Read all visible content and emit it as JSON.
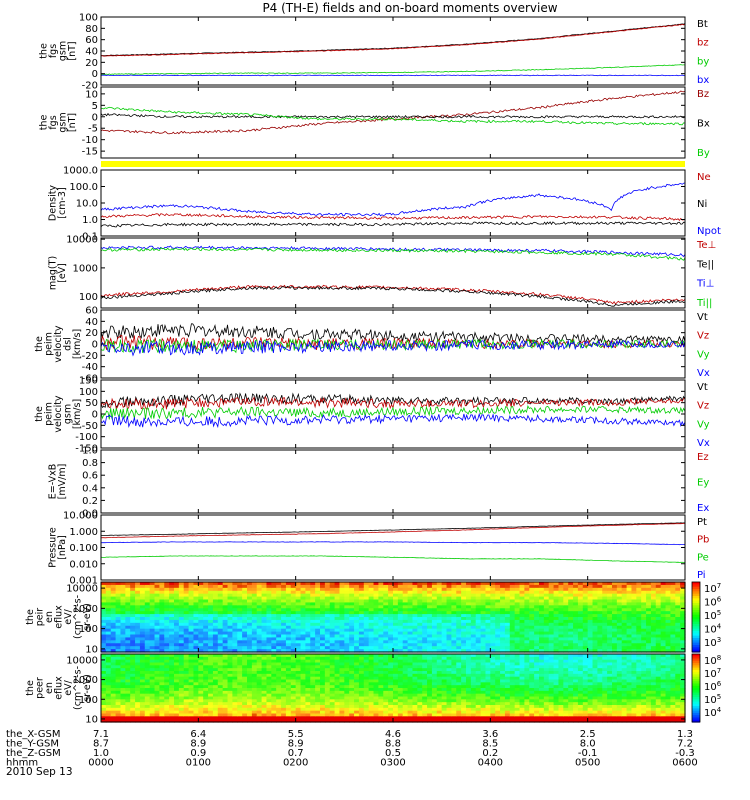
{
  "title": "P4 (TH-E) fields and on-board moments overview",
  "date": "2010 Sep 13",
  "chart_data": [
    {
      "type": "line",
      "panel": "fgs_gsm_nT",
      "ylabel": [
        "the",
        "fgs",
        "gsm",
        "[nT]"
      ],
      "yticks": [
        "100",
        "80",
        "60",
        "40",
        "20",
        "0",
        "-20"
      ],
      "ylim": [
        -20,
        100
      ],
      "series": [
        {
          "name": "Bt",
          "color": "#000000",
          "values": [
            32,
            35,
            38,
            41,
            45,
            52,
            62,
            75,
            88
          ]
        },
        {
          "name": "bz",
          "color": "#c00000",
          "values": [
            31,
            34,
            37,
            40,
            44,
            51,
            61,
            74,
            87
          ]
        },
        {
          "name": "by",
          "color": "#00cc00",
          "values": [
            -1,
            0,
            1,
            1,
            2,
            4,
            7,
            11,
            16
          ]
        },
        {
          "name": "bx",
          "color": "#0000ff",
          "values": [
            -3,
            -3,
            -3,
            -3,
            -3,
            -3,
            -3,
            -3,
            -3
          ]
        }
      ]
    },
    {
      "type": "line",
      "panel": "fgs_gsm_nT_zoom",
      "ylabel": [
        "the",
        "fgs",
        "gsm",
        "[nT]"
      ],
      "yticks": [
        "10",
        "5",
        "0",
        "-5",
        "-10",
        "-15"
      ],
      "ylim": [
        -18,
        13
      ],
      "series": [
        {
          "name": "Bz",
          "color": "#990000",
          "values": [
            -6,
            -7,
            -6,
            -3,
            -1,
            1,
            4,
            8,
            11
          ]
        },
        {
          "name": "Bx",
          "color": "#000000",
          "values": [
            1,
            0,
            0,
            0,
            0,
            0,
            0,
            0,
            0
          ]
        },
        {
          "name": "By",
          "color": "#00cc00",
          "values": [
            4,
            2,
            1,
            -1,
            -1,
            -2,
            -2,
            -3,
            -3
          ]
        }
      ]
    },
    {
      "type": "line",
      "panel": "density",
      "scale": "log",
      "ylabel": [
        "Density",
        "[cm-3]"
      ],
      "yticks": [
        "1000.0",
        "100.0",
        "10.0",
        "1.0",
        "0.1"
      ],
      "ylim": [
        0.1,
        1000
      ],
      "series": [
        {
          "name": "Ne",
          "color": "#c00000",
          "values": [
            1.5,
            2,
            1.5,
            1.3,
            1.2,
            1.3,
            1.5,
            1.4,
            1.0
          ]
        },
        {
          "name": "Ni",
          "color": "#000000",
          "values": [
            0.4,
            0.5,
            0.5,
            0.5,
            0.5,
            0.6,
            0.6,
            0.6,
            0.6
          ]
        },
        {
          "name": "Npot",
          "color": "#0000ff",
          "values": [
            4,
            7,
            3,
            2,
            2,
            6,
            30,
            4,
            150
          ]
        }
      ]
    },
    {
      "type": "line",
      "panel": "temperature",
      "scale": "log",
      "ylabel": [
        "mag(T)",
        "[eV]"
      ],
      "yticks": [
        "10000",
        "1000",
        "100"
      ],
      "ylim": [
        40,
        11000
      ],
      "series": [
        {
          "name": "Te⊥",
          "color": "#c00000",
          "values": [
            110,
            150,
            220,
            220,
            210,
            170,
            120,
            60,
            80
          ]
        },
        {
          "name": "Te||",
          "color": "#000000",
          "values": [
            90,
            130,
            200,
            200,
            190,
            150,
            100,
            50,
            70
          ]
        },
        {
          "name": "Ti⊥",
          "color": "#0000ff",
          "values": [
            5000,
            5200,
            5000,
            4800,
            4500,
            4200,
            4000,
            3500,
            2800
          ]
        },
        {
          "name": "Ti||",
          "color": "#00cc00",
          "values": [
            4200,
            4500,
            4300,
            4200,
            4000,
            3800,
            3500,
            3000,
            2000
          ]
        }
      ]
    },
    {
      "type": "line",
      "panel": "peim_velocity_dsl",
      "ylabel": [
        "the",
        "peim",
        "velocity",
        "dsl",
        "[km/s]"
      ],
      "yticks": [
        "60",
        "40",
        "20",
        "0",
        "-20",
        "-40",
        "-60"
      ],
      "ylim": [
        -60,
        60
      ],
      "series": [
        {
          "name": "Vt",
          "color": "#000000",
          "values": [
            20,
            25,
            22,
            18,
            15,
            12,
            10,
            9,
            8
          ]
        },
        {
          "name": "Vz",
          "color": "#c00000",
          "values": [
            3,
            2,
            1,
            0,
            1,
            0,
            1,
            0,
            0
          ]
        },
        {
          "name": "Vy",
          "color": "#00cc00",
          "values": [
            -5,
            -4,
            -3,
            -2,
            -1,
            -1,
            0,
            0,
            0
          ]
        },
        {
          "name": "Vx",
          "color": "#0000ff",
          "values": [
            -8,
            -7,
            -6,
            -4,
            -3,
            -2,
            -2,
            -1,
            -1
          ]
        }
      ]
    },
    {
      "type": "line",
      "panel": "peim_velocity_gsm",
      "ylabel": [
        "the",
        "peim",
        "velocity",
        "gsm",
        "[km/s]"
      ],
      "yticks": [
        "150",
        "100",
        "50",
        "0",
        "-50",
        "-100",
        "-150"
      ],
      "ylim": [
        -150,
        150
      ],
      "series": [
        {
          "name": "Vt",
          "color": "#000000",
          "values": [
            50,
            60,
            70,
            65,
            60,
            55,
            60,
            55,
            70
          ]
        },
        {
          "name": "Vz",
          "color": "#c00000",
          "values": [
            40,
            45,
            55,
            50,
            45,
            45,
            50,
            50,
            60
          ]
        },
        {
          "name": "Vy",
          "color": "#00cc00",
          "values": [
            0,
            5,
            10,
            5,
            10,
            15,
            20,
            20,
            15
          ]
        },
        {
          "name": "Vx",
          "color": "#0000ff",
          "values": [
            -30,
            -35,
            -30,
            -25,
            -20,
            -15,
            -20,
            -30,
            -40
          ]
        }
      ]
    },
    {
      "type": "line",
      "panel": "efield",
      "ylabel": [
        "E=-VxB",
        "[mV/m]"
      ],
      "yticks": [
        "1.0",
        "0.8",
        "0.6",
        "0.4",
        "0.2",
        "0.0"
      ],
      "ylim": [
        0,
        1
      ],
      "series": [
        {
          "name": "Ez",
          "color": "#c00000",
          "values": []
        },
        {
          "name": "Ey",
          "color": "#00cc00",
          "values": []
        },
        {
          "name": "Ex",
          "color": "#0000ff",
          "values": []
        }
      ]
    },
    {
      "type": "line",
      "panel": "pressure",
      "scale": "log",
      "ylabel": [
        "Pressure",
        "[nPa]"
      ],
      "yticks": [
        "10.000",
        "1.000",
        "0.100",
        "0.010",
        "0.001"
      ],
      "ylim": [
        0.001,
        10
      ],
      "series": [
        {
          "name": "Pt",
          "color": "#000000",
          "values": [
            0.55,
            0.65,
            0.8,
            0.95,
            1.2,
            1.5,
            2.0,
            2.6,
            3.3
          ]
        },
        {
          "name": "Pb",
          "color": "#c00000",
          "values": [
            0.4,
            0.5,
            0.6,
            0.7,
            0.9,
            1.2,
            1.7,
            2.3,
            3.0
          ]
        },
        {
          "name": "Pe",
          "color": "#00cc00",
          "values": [
            0.025,
            0.03,
            0.03,
            0.03,
            0.025,
            0.02,
            0.02,
            0.015,
            0.012
          ]
        },
        {
          "name": "Pi",
          "color": "#0000ff",
          "values": [
            0.2,
            0.22,
            0.22,
            0.22,
            0.22,
            0.2,
            0.2,
            0.18,
            0.15
          ]
        }
      ]
    },
    {
      "type": "heatmap",
      "panel": "peir_en_eflux",
      "ylabel": [
        "the",
        "peir",
        "en",
        "eflux",
        "eV/",
        "(cm^2-s-",
        "sr-eV)"
      ],
      "yticks": [
        "10000",
        "1000",
        "100",
        "10"
      ],
      "ylim": [
        7,
        20000
      ],
      "colorbar": [
        "10^7",
        "10^6",
        "10^5",
        "10^4",
        "10^3"
      ]
    },
    {
      "type": "heatmap",
      "panel": "peer_en_eflux",
      "ylabel": [
        "the",
        "peer",
        "en",
        "eflux",
        "eV/",
        "(cm^2-s-",
        "sr-eV)"
      ],
      "yticks": [
        "10000",
        "1000",
        "100",
        "10"
      ],
      "ylim": [
        7,
        20000
      ],
      "colorbar": [
        "10^8",
        "10^7",
        "10^6",
        "10^5",
        "10^4"
      ]
    }
  ],
  "x_axis": {
    "row_labels": [
      "the_X-GSM",
      "the_Y-GSM",
      "the_Z-GSM",
      "hhmm"
    ],
    "columns": [
      [
        "7.1",
        "8.7",
        "1.0",
        "0000"
      ],
      [
        "6.4",
        "8.9",
        "0.9",
        "0100"
      ],
      [
        "5.5",
        "8.9",
        "0.7",
        "0200"
      ],
      [
        "4.6",
        "8.8",
        "0.5",
        "0300"
      ],
      [
        "3.6",
        "8.5",
        "0.2",
        "0400"
      ],
      [
        "2.5",
        "8.0",
        "-0.1",
        "0500"
      ],
      [
        "1.3",
        "7.2",
        "-0.3",
        "0600"
      ]
    ]
  }
}
